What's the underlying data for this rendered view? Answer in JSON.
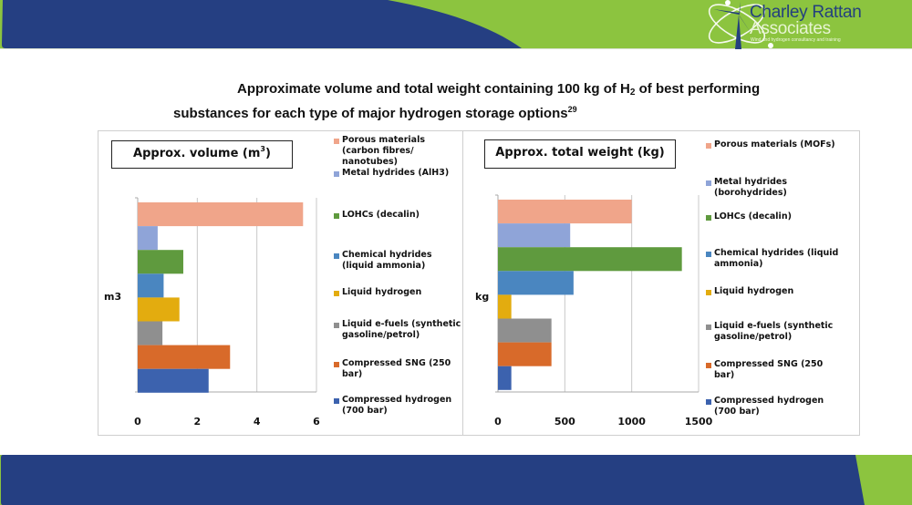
{
  "branding": {
    "company_line1": "Charley Rattan",
    "company_line2": "Associates",
    "tagline": "Wind and hydrogen consultancy and training",
    "logo_icon": "wind-turbine-atom-icon",
    "colors": {
      "navy": "#253f82",
      "green": "#8cc43f"
    }
  },
  "slide": {
    "title_line1_pre": "Approximate volume and total weight containing 100 kg of H",
    "title_line1_sub": "2",
    "title_line1_post": " of best performing",
    "title_line2": "substances for each type of major hydrogen storage options",
    "title_footnote": "29"
  },
  "chart_data": [
    {
      "type": "bar",
      "orientation": "horizontal",
      "title": "Approx. volume (m",
      "title_sup": "3",
      "title_close": ")",
      "xlabel": "",
      "ylabel": "m3",
      "xlim": [
        0,
        6
      ],
      "x_ticks": [
        "0",
        "2",
        "4",
        "6"
      ],
      "x_tick_values": [
        0,
        2,
        4,
        6
      ],
      "grid": true,
      "legend_position": "right",
      "categories": [
        "Porous materials (carbon fibres/ nanotubes)",
        "Metal hydrides (AlH3)",
        "LOHCs (decalin)",
        "Chemical hydrides (liquid ammonia)",
        "Liquid hydrogen",
        "Liquid e-fuels (synthetic gasoline/petrol)",
        "Compressed SNG (250 bar)",
        "Compressed hydrogen (700 bar)"
      ],
      "legend_lines": [
        [
          "Porous materials",
          "(carbon fibres/",
          "nanotubes)"
        ],
        [
          "Metal hydrides (AlH3)"
        ],
        [
          "LOHCs (decalin)"
        ],
        [
          "Chemical hydrides",
          "(liquid ammonia)"
        ],
        [
          "Liquid hydrogen"
        ],
        [
          "Liquid e-fuels (synthetic",
          "gasoline/petrol)"
        ],
        [
          "Compressed SNG (250",
          "bar)"
        ],
        [
          "Compressed hydrogen",
          "(700 bar)"
        ]
      ],
      "values": [
        5.55,
        0.67,
        1.53,
        0.87,
        1.4,
        0.83,
        3.1,
        2.38
      ],
      "colors": [
        "#f0a58a",
        "#8fa4d8",
        "#5f9a3e",
        "#4a86c0",
        "#e3ac0f",
        "#8f8f8f",
        "#d86a2a",
        "#3c62ae"
      ]
    },
    {
      "type": "bar",
      "orientation": "horizontal",
      "title": "Approx. total weight (kg)",
      "xlabel": "",
      "ylabel": "kg",
      "xlim": [
        0,
        1500
      ],
      "x_ticks": [
        "0",
        "500",
        "1000",
        "1500"
      ],
      "x_tick_values": [
        0,
        500,
        1000,
        1500
      ],
      "grid": true,
      "legend_position": "right",
      "categories": [
        "Porous materials (MOFs)",
        "Metal hydrides (borohydrides)",
        "LOHCs (decalin)",
        "Chemical hydrides (liquid ammonia)",
        "Liquid hydrogen",
        "Liquid e-fuels (synthetic gasoline/petrol)",
        "Compressed SNG (250 bar)",
        "Compressed hydrogen (700 bar)"
      ],
      "legend_lines": [
        [
          "Porous materials (MOFs)"
        ],
        [
          "Metal hydrides",
          "(borohydrides)"
        ],
        [
          "LOHCs (decalin)"
        ],
        [
          "Chemical hydrides (liquid",
          "ammonia)"
        ],
        [
          "Liquid hydrogen"
        ],
        [
          "Liquid e-fuels (synthetic",
          "gasoline/petrol)"
        ],
        [
          "Compressed SNG (250",
          "bar)"
        ],
        [
          "Compressed hydrogen",
          "(700 bar)"
        ]
      ],
      "values": [
        1000,
        540,
        1375,
        565,
        100,
        400,
        400,
        100
      ],
      "colors": [
        "#f0a58a",
        "#8fa4d8",
        "#5f9a3e",
        "#4a86c0",
        "#e3ac0f",
        "#8f8f8f",
        "#d86a2a",
        "#3c62ae"
      ]
    }
  ]
}
